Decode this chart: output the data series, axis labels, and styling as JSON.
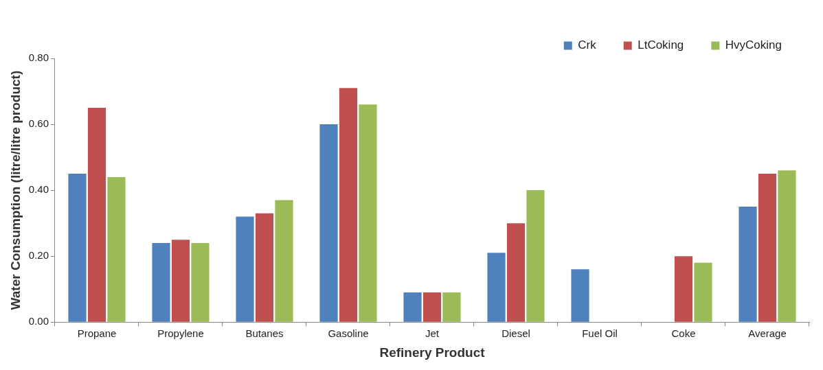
{
  "chart_data": {
    "type": "bar",
    "xlabel": "Refinery Product",
    "ylabel": "Water Consumption (litre/litre product)",
    "categories": [
      "Propane",
      "Propylene",
      "Butanes",
      "Gasoline",
      "Jet",
      "Diesel",
      "Fuel Oil",
      "Coke",
      "Average"
    ],
    "series": [
      {
        "name": "Crk",
        "color": "#4f81bd",
        "values": [
          0.45,
          0.24,
          0.32,
          0.6,
          0.09,
          0.21,
          0.16,
          null,
          0.35
        ]
      },
      {
        "name": "LtCoking",
        "color": "#c0504d",
        "values": [
          0.65,
          0.25,
          0.33,
          0.71,
          0.09,
          0.3,
          null,
          0.2,
          0.45
        ]
      },
      {
        "name": "HvyCoking",
        "color": "#9bbb59",
        "values": [
          0.44,
          0.24,
          0.37,
          0.66,
          0.09,
          0.4,
          null,
          0.18,
          0.46
        ]
      }
    ],
    "ylim": [
      0,
      0.8
    ],
    "yticks": [
      {
        "value": 0,
        "label": "0.00"
      },
      {
        "value": 0.2,
        "label": "0.20"
      },
      {
        "value": 0.4,
        "label": "0.40"
      },
      {
        "value": 0.6,
        "label": "0.60"
      },
      {
        "value": 0.8,
        "label": "0.80"
      }
    ],
    "grid": false,
    "legend": "top right"
  }
}
